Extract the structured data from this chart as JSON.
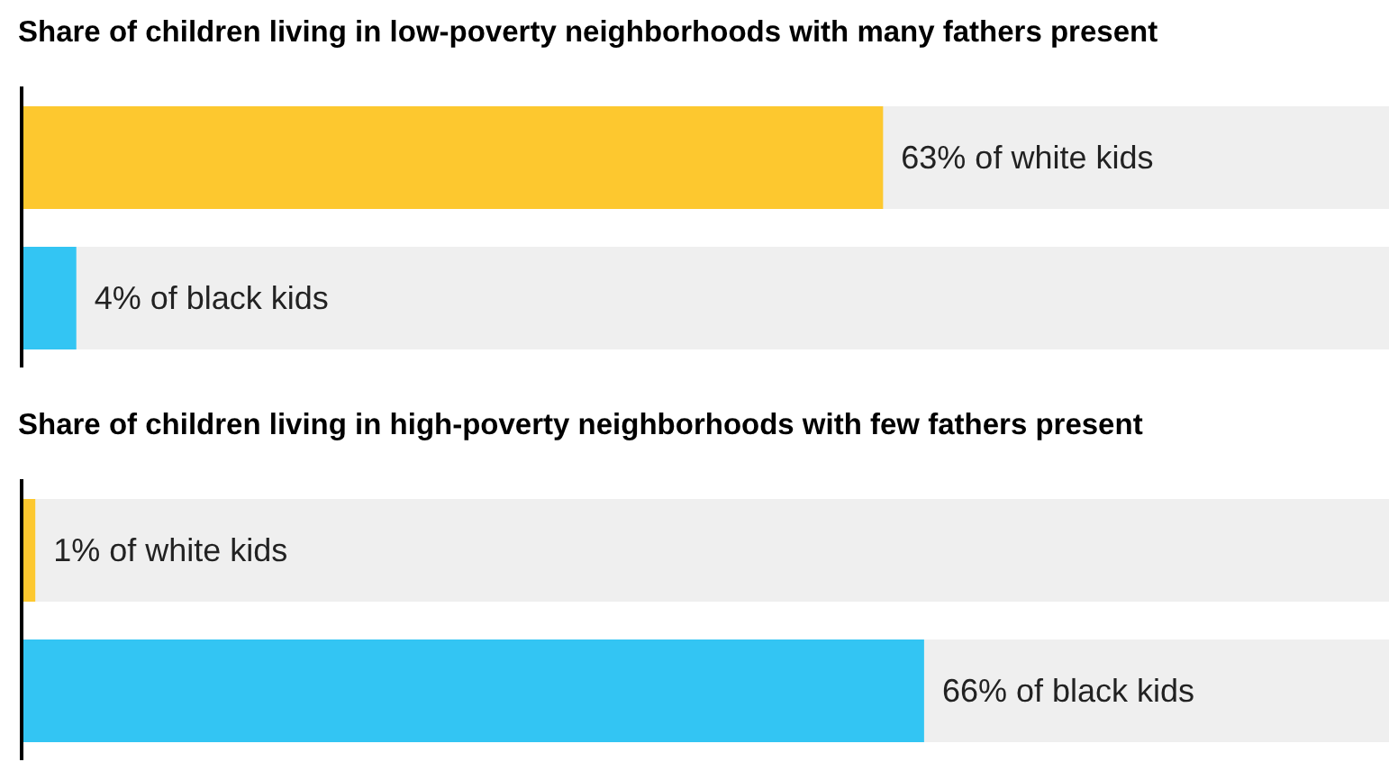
{
  "chart_data": [
    {
      "type": "bar",
      "orientation": "horizontal",
      "title": "Share of children living in low-poverty neighborhoods with many fathers present",
      "categories": [
        null,
        null
      ],
      "values": [
        63,
        4
      ],
      "colors": [
        "#fdc82f",
        "#33c5f3"
      ],
      "value_labels": [
        "63% of white kids",
        "4% of black kids"
      ],
      "xlim": [
        0,
        100
      ],
      "tick_labels": false,
      "grid": false,
      "legend": false
    },
    {
      "type": "bar",
      "orientation": "horizontal",
      "title": "Share of children living in high-poverty neighborhoods with few fathers present",
      "categories": [
        null,
        null
      ],
      "values": [
        1,
        66
      ],
      "colors": [
        "#fdc82f",
        "#33c5f3"
      ],
      "value_labels": [
        "1% of white kids",
        "66% of black kids"
      ],
      "xlim": [
        0,
        100
      ],
      "tick_labels": false,
      "grid": false,
      "legend": false
    }
  ]
}
